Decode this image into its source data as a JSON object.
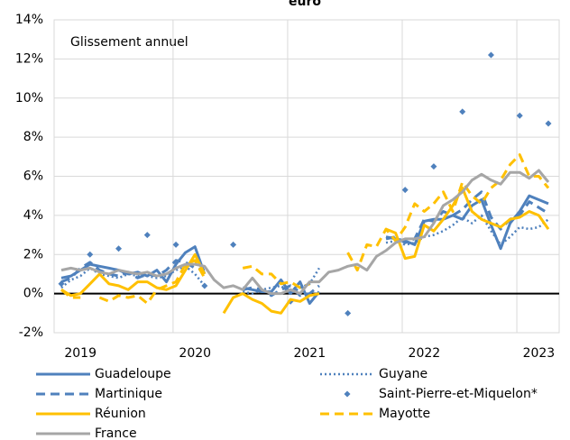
{
  "chart_data": {
    "type": "line",
    "title": "euro",
    "annotation": "Glissement annuel",
    "categories": [
      null,
      null,
      "2019",
      null,
      null,
      null,
      null,
      null,
      null,
      null,
      null,
      null,
      null,
      null,
      "2020",
      null,
      null,
      null,
      null,
      null,
      null,
      null,
      null,
      null,
      null,
      null,
      "2021",
      null,
      null,
      null,
      null,
      null,
      null,
      null,
      null,
      null,
      null,
      null,
      "2022",
      null,
      null,
      null,
      null,
      null,
      null,
      null,
      null,
      null,
      null,
      null,
      "2023",
      null
    ],
    "ylim": [
      -2,
      14
    ],
    "yticks": [
      {
        "value": -2,
        "label": "-2%"
      },
      {
        "value": 0,
        "label": "0%"
      },
      {
        "value": 2,
        "label": "2%"
      },
      {
        "value": 4,
        "label": "4%"
      },
      {
        "value": 6,
        "label": "6%"
      },
      {
        "value": 8,
        "label": "8%"
      },
      {
        "value": 10,
        "label": "10%"
      },
      {
        "value": 12,
        "label": "12%"
      },
      {
        "value": 14,
        "label": "14%"
      }
    ],
    "grid": true,
    "series": [
      {
        "name": "Guadeloupe",
        "color": "#4f81bd",
        "style": "solid",
        "values": [
          0.8,
          0.9,
          1.2,
          1.5,
          1.4,
          1.3,
          1.2,
          1.0,
          1.1,
          0.9,
          1.2,
          0.6,
          1.5,
          2.1,
          2.4,
          1.0,
          null,
          null,
          null,
          0.3,
          0.2,
          0.1,
          0.1,
          0.7,
          0.0,
          0.6,
          -0.5,
          0.1,
          null,
          null,
          null,
          null,
          null,
          null,
          2.9,
          2.8,
          2.7,
          2.5,
          3.7,
          3.8,
          3.8,
          4.0,
          3.8,
          4.5,
          4.8,
          3.5,
          2.3,
          3.6,
          4.2,
          5.0,
          4.8,
          4.6
        ]
      },
      {
        "name": "Guyane",
        "color": "#4f81bd",
        "style": "dotted",
        "values": [
          0.3,
          0.7,
          0.9,
          1.3,
          1.0,
          0.9,
          0.8,
          1.0,
          0.9,
          0.9,
          0.8,
          0.9,
          1.2,
          1.4,
          1.0,
          0.4,
          null,
          null,
          null,
          0.1,
          0.0,
          0.2,
          0.3,
          0.4,
          0.0,
          0.3,
          0.5,
          1.3,
          null,
          null,
          null,
          null,
          null,
          null,
          2.6,
          2.7,
          2.5,
          2.6,
          2.9,
          3.0,
          3.2,
          3.5,
          3.9,
          3.6,
          4.0,
          3.2,
          2.5,
          2.9,
          3.4,
          3.3,
          3.4,
          3.8
        ]
      },
      {
        "name": "Martinique",
        "color": "#4f81bd",
        "style": "dashed",
        "values": [
          0.6,
          0.8,
          1.3,
          1.6,
          1.2,
          1.0,
          0.9,
          1.1,
          0.8,
          1.0,
          0.9,
          1.2,
          1.7,
          1.6,
          1.3,
          1.2,
          null,
          null,
          null,
          0.2,
          0.3,
          0.2,
          -0.1,
          0.2,
          0.4,
          -0.1,
          0.0,
          0.4,
          null,
          null,
          null,
          null,
          null,
          null,
          2.8,
          2.9,
          2.6,
          2.8,
          3.8,
          3.7,
          4.2,
          4.0,
          4.3,
          4.8,
          5.2,
          3.9,
          3.3,
          3.8,
          4.0,
          4.7,
          4.4,
          4.1
        ]
      },
      {
        "name": "Saint-Pierre-et-Miquelon*",
        "color": "#4f81bd",
        "style": "markers",
        "values": [
          0.5,
          null,
          null,
          2.0,
          null,
          null,
          2.3,
          null,
          null,
          3.0,
          null,
          null,
          2.5,
          null,
          null,
          0.4,
          null,
          null,
          2.5,
          null,
          null,
          null,
          null,
          null,
          -0.4,
          null,
          null,
          null,
          null,
          null,
          -1.0,
          null,
          null,
          null,
          null,
          null,
          5.3,
          null,
          null,
          6.5,
          null,
          null,
          9.3,
          null,
          null,
          12.2,
          null,
          null,
          9.1,
          null,
          null,
          8.7
        ]
      },
      {
        "name": "Réunion",
        "color": "#ffc000",
        "style": "solid",
        "values": [
          0.2,
          -0.1,
          0.0,
          0.5,
          1.0,
          0.5,
          0.4,
          0.2,
          0.6,
          0.6,
          0.3,
          0.2,
          0.4,
          1.2,
          2.0,
          1.0,
          null,
          -1.0,
          -0.2,
          0.0,
          -0.3,
          -0.5,
          -0.9,
          -1.0,
          -0.3,
          -0.4,
          -0.1,
          0.0,
          null,
          null,
          null,
          null,
          null,
          null,
          3.3,
          3.1,
          1.8,
          1.9,
          3.5,
          3.2,
          3.8,
          4.5,
          5.4,
          4.2,
          3.8,
          3.6,
          3.4,
          3.8,
          3.9,
          4.2,
          4.0,
          3.3
        ]
      },
      {
        "name": "Mayotte",
        "color": "#ffc000",
        "style": "dashed",
        "values": [
          0.2,
          -0.2,
          -0.2,
          null,
          -0.2,
          -0.4,
          -0.1,
          -0.2,
          -0.1,
          -0.5,
          0.2,
          0.4,
          0.6,
          1.5,
          1.7,
          0.8,
          null,
          null,
          null,
          1.3,
          1.4,
          1.0,
          1.0,
          0.5,
          0.6,
          0.3,
          0.5,
          null,
          null,
          null,
          2.1,
          1.2,
          2.5,
          2.4,
          3.3,
          2.7,
          3.4,
          4.6,
          4.2,
          4.6,
          5.2,
          4.2,
          5.7,
          5.0,
          4.6,
          5.4,
          5.8,
          6.6,
          7.1,
          6.0,
          6.0,
          5.4
        ]
      },
      {
        "name": "France",
        "color": "#a6a6a6",
        "style": "solid",
        "values": [
          1.2,
          1.3,
          1.2,
          1.3,
          1.1,
          1.0,
          1.2,
          1.1,
          1.0,
          1.1,
          0.9,
          1.0,
          1.3,
          1.5,
          1.5,
          1.4,
          0.7,
          0.3,
          0.4,
          0.2,
          0.8,
          0.2,
          0.0,
          0.0,
          0.2,
          0.0,
          0.6,
          0.6,
          1.1,
          1.2,
          1.4,
          1.5,
          1.2,
          1.9,
          2.2,
          2.6,
          2.8,
          2.8,
          2.9,
          3.6,
          4.5,
          4.8,
          5.2,
          5.8,
          6.1,
          5.8,
          5.6,
          6.2,
          6.2,
          5.9,
          6.3,
          5.7
        ]
      }
    ]
  }
}
